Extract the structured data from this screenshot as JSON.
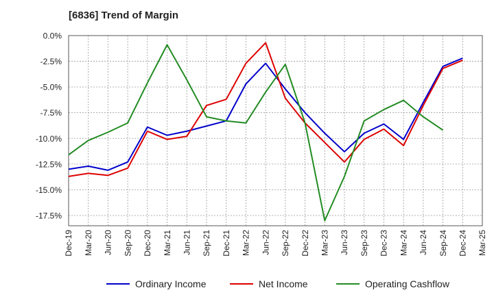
{
  "chart_data": {
    "type": "line",
    "title": "[6836]  Trend of Margin",
    "x": [
      "Dec-19",
      "Mar-20",
      "Jun-20",
      "Sep-20",
      "Dec-20",
      "Mar-21",
      "Jun-21",
      "Sep-21",
      "Dec-21",
      "Mar-22",
      "Jun-22",
      "Sep-22",
      "Dec-22",
      "Mar-23",
      "Jun-23",
      "Sep-23",
      "Dec-23",
      "Mar-24",
      "Jun-24",
      "Sep-24",
      "Dec-24",
      "Mar-25"
    ],
    "y_ticks": [
      "0.0%",
      "-2.5%",
      "-5.0%",
      "-7.5%",
      "-10.0%",
      "-12.5%",
      "-15.0%",
      "-17.5%"
    ],
    "ylim": [
      -18.5,
      0
    ],
    "grid": true,
    "legend_position": "bottom",
    "series": [
      {
        "name": "Ordinary Income",
        "color": "#0000cc",
        "values": [
          -13.0,
          -12.7,
          -13.1,
          -12.3,
          -8.9,
          -9.7,
          -9.3,
          -8.8,
          -8.3,
          -4.7,
          -2.7,
          -5.2,
          -7.5,
          -9.5,
          -11.3,
          -9.5,
          -8.6,
          -10.1,
          -6.5,
          -3.0,
          -2.2,
          null
        ]
      },
      {
        "name": "Net Income",
        "color": "#dd0000",
        "values": [
          -13.7,
          -13.4,
          -13.6,
          -12.9,
          -9.3,
          -10.1,
          -9.8,
          -6.8,
          -6.2,
          -2.7,
          -0.7,
          -6.1,
          -8.5,
          -10.4,
          -12.3,
          -10.1,
          -9.1,
          -10.7,
          -6.8,
          -3.2,
          -2.4,
          null
        ]
      },
      {
        "name": "Operating Cashflow",
        "color": "#228B22",
        "values": [
          -11.6,
          -10.2,
          -9.4,
          -8.5,
          -4.6,
          -0.9,
          -4.3,
          -7.9,
          -8.3,
          -8.5,
          -5.5,
          -2.8,
          -8.5,
          -18.0,
          -13.7,
          -8.3,
          -7.2,
          -6.3,
          -7.9,
          -9.2,
          null,
          null
        ]
      }
    ]
  }
}
